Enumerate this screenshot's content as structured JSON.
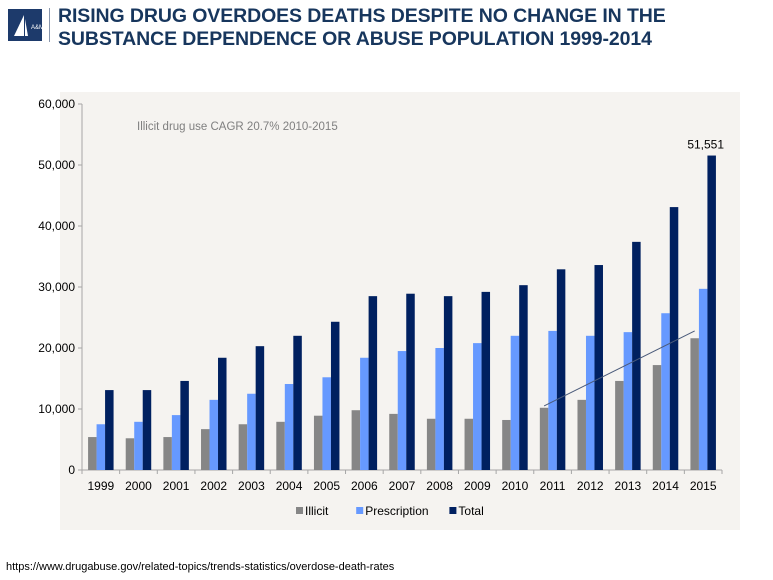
{
  "header": {
    "title_line1": "RISING DRUG OVERDOES DEATHS DESPITE NO CHANGE IN THE",
    "title_line2": "SUBSTANCE DEPENDENCE OR ABUSE POPULATION 1999-2014",
    "logo_text": "A&M"
  },
  "source": "https://www.drugabuse.gov/related-topics/trends-statistics/overdose-death-rates",
  "chart_data": {
    "type": "bar",
    "title": "",
    "xlabel": "",
    "ylabel": "",
    "ylim": [
      0,
      60000
    ],
    "yticks": [
      0,
      10000,
      20000,
      30000,
      40000,
      50000,
      60000
    ],
    "ytick_labels": [
      "0",
      "10,000",
      "20,000",
      "30,000",
      "40,000",
      "50,000",
      "60,000"
    ],
    "categories": [
      "1999",
      "2000",
      "2001",
      "2002",
      "2003",
      "2004",
      "2005",
      "2006",
      "2007",
      "2008",
      "2009",
      "2010",
      "2011",
      "2012",
      "2013",
      "2014",
      "2015"
    ],
    "series": [
      {
        "name": "Illicit",
        "color": "#868686",
        "values": [
          5400,
          5200,
          5400,
          6700,
          7500,
          7900,
          8900,
          9800,
          9200,
          8400,
          8400,
          8200,
          10200,
          11500,
          14600,
          17200,
          21600
        ]
      },
      {
        "name": "Prescription",
        "color": "#6699ff",
        "values": [
          7500,
          7900,
          9000,
          11500,
          12500,
          14100,
          15200,
          18400,
          19500,
          20000,
          20800,
          22000,
          22800,
          22000,
          22600,
          25700,
          29700
        ]
      },
      {
        "name": "Total",
        "color": "#002060",
        "values": [
          13100,
          13100,
          14600,
          18400,
          20300,
          22000,
          24300,
          28500,
          28900,
          28500,
          29200,
          30300,
          32900,
          33600,
          37400,
          43100,
          51551
        ]
      }
    ],
    "data_labels": [
      {
        "category": "2015",
        "series": "Total",
        "text": "51,551"
      }
    ],
    "annotation": "Illicit drug use CAGR 20.7% 2010-2015",
    "trendline": {
      "series": "Illicit",
      "from": {
        "x": "2011",
        "y": 10500
      },
      "to": {
        "x": "2015",
        "y": 22800
      }
    },
    "legend": "bottom",
    "grid": false
  }
}
